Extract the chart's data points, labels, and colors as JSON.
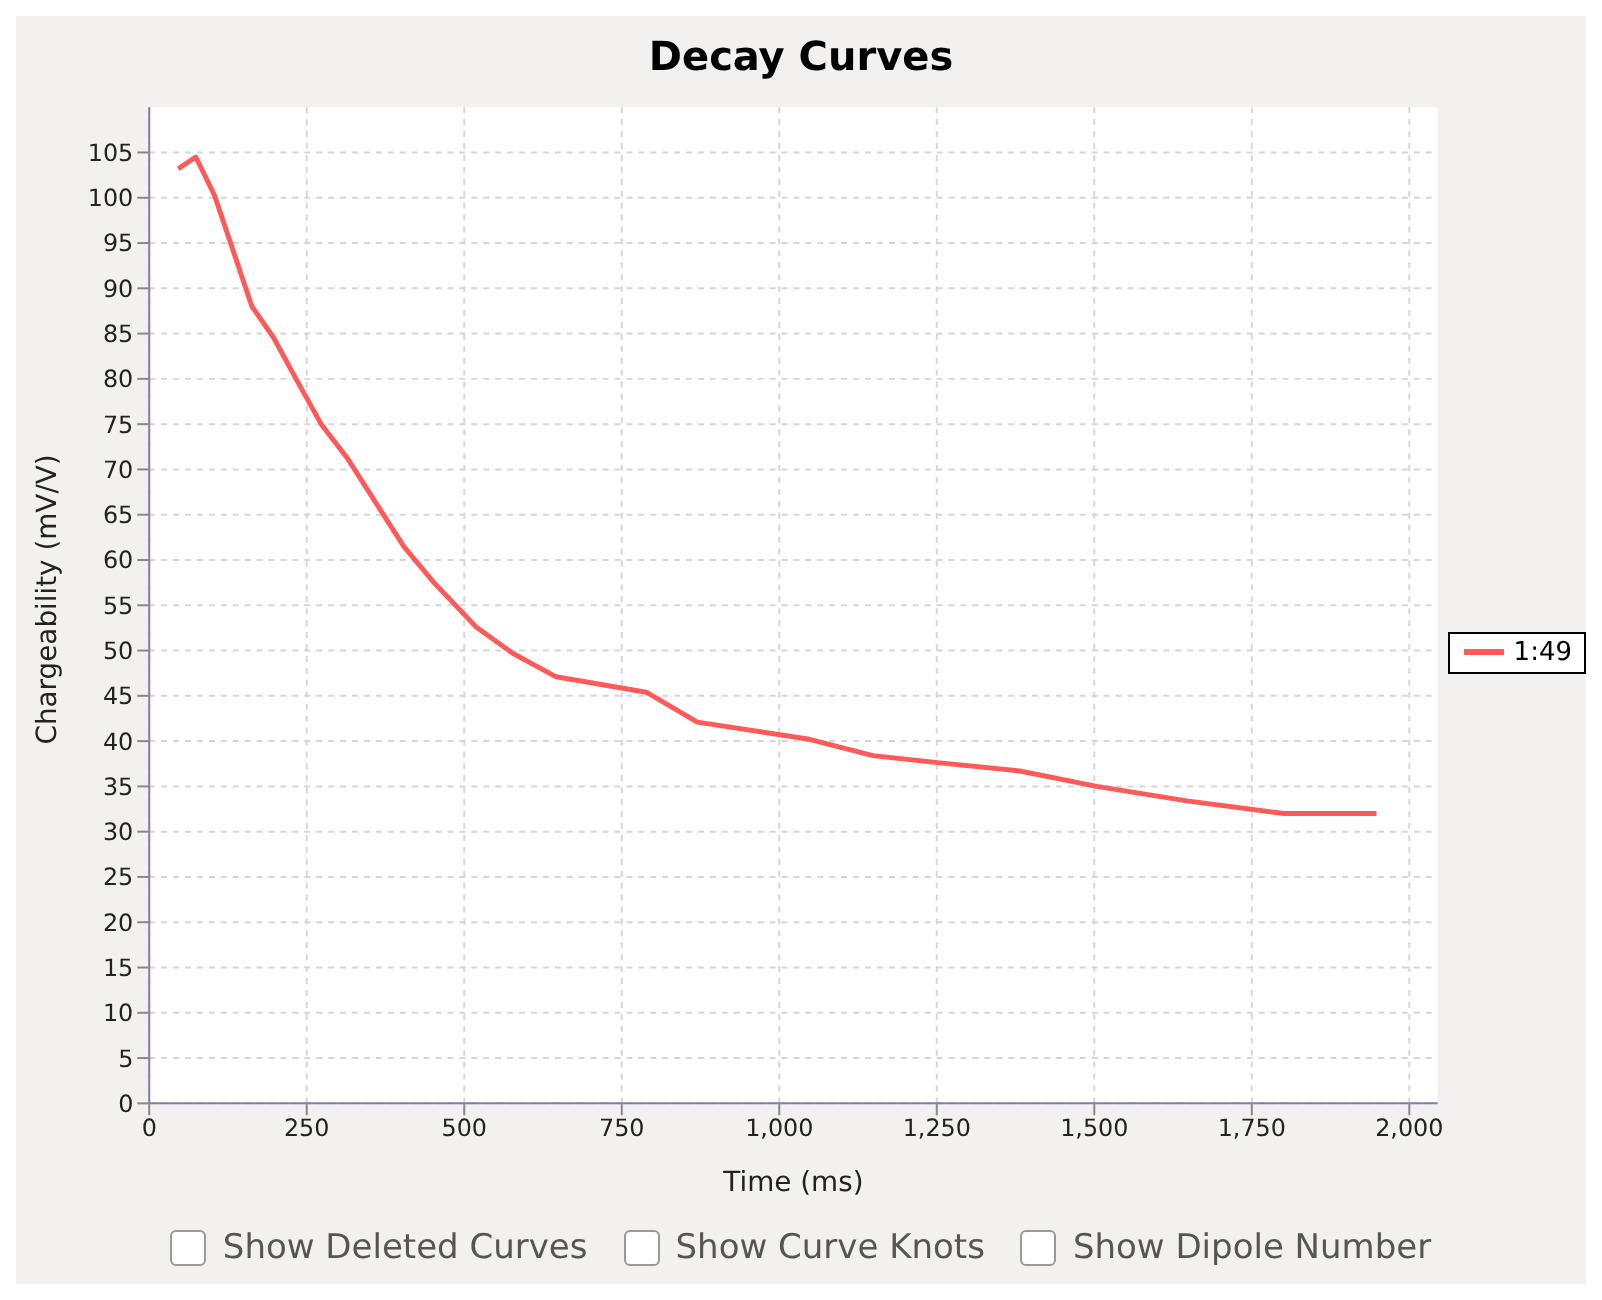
{
  "chart_data": {
    "type": "line",
    "title": "Decay Curves",
    "xlabel": "Time (ms)",
    "ylabel": "Chargeability (mV/V)",
    "x": [
      46,
      74,
      104,
      163,
      197,
      237,
      273,
      314,
      404,
      452,
      519,
      577,
      646,
      789,
      870,
      1048,
      1149,
      1255,
      1382,
      1504,
      1647,
      1801,
      1948
    ],
    "series": [
      {
        "name": "1:49",
        "color": "#ff5a5a",
        "values": [
          103.2,
          104.5,
          100.2,
          88,
          84.6,
          79.5,
          75,
          71.3,
          61.5,
          57.5,
          52.6,
          49.7,
          47.1,
          45.4,
          42.1,
          40.2,
          38.4,
          37.6,
          36.7,
          35,
          33.4,
          32,
          32
        ]
      }
    ],
    "xlim": [
      0,
      2045
    ],
    "ylim": [
      0,
      110
    ],
    "xticks": [
      0,
      250,
      500,
      750,
      {
        "value": 1000,
        "label": "1,000"
      },
      {
        "value": 1250,
        "label": "1,250"
      },
      {
        "value": 1500,
        "label": "1,500"
      },
      {
        "value": 1750,
        "label": "1,750"
      },
      {
        "value": 2000,
        "label": "2,000"
      }
    ],
    "yticks": [
      0,
      5,
      10,
      15,
      20,
      25,
      30,
      35,
      40,
      45,
      50,
      55,
      60,
      65,
      70,
      75,
      80,
      85,
      90,
      95,
      100,
      105
    ],
    "grid": true,
    "legend": "right",
    "marker": "none",
    "line_style": "solid",
    "annotations": [
      "Show Deleted Curves",
      "Show Curve Knots",
      "Show Dipole Number"
    ]
  }
}
